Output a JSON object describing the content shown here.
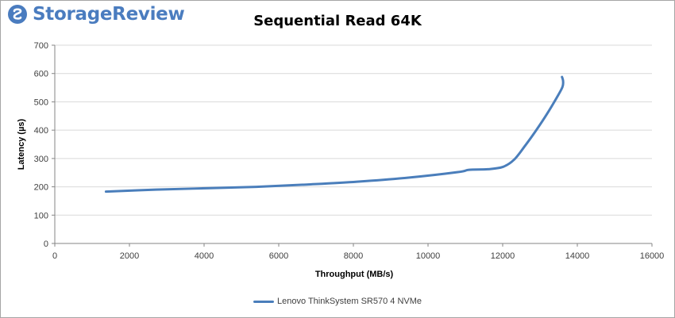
{
  "brand": {
    "name": "StorageReview",
    "logo_icon": "storagereview-logo-icon",
    "color": "#4a7cbf"
  },
  "chart_data": {
    "type": "line",
    "title": "Sequential Read 64K",
    "xlabel": "Throughput (MB/s)",
    "ylabel": "Latency (µs)",
    "xlim": [
      0,
      16000
    ],
    "ylim": [
      0,
      700
    ],
    "xticks": [
      0,
      2000,
      4000,
      6000,
      8000,
      10000,
      12000,
      14000,
      16000
    ],
    "yticks": [
      0,
      100,
      200,
      300,
      400,
      500,
      600,
      700
    ],
    "grid": "horizontal",
    "legend_position": "bottom",
    "series": [
      {
        "name": "Lenovo ThinkSystem SR570 4 NVMe",
        "color": "#4a7ebb",
        "x": [
          1370,
          2700,
          4050,
          5400,
          6750,
          8100,
          9450,
          10800,
          11100,
          11600,
          12000,
          12300,
          12600,
          12900,
          13200,
          13450,
          13600,
          13620,
          13590
        ],
        "y": [
          183,
          190,
          195,
          200,
          208,
          218,
          232,
          252,
          260,
          262,
          270,
          295,
          345,
          400,
          460,
          515,
          552,
          572,
          588
        ]
      }
    ]
  }
}
